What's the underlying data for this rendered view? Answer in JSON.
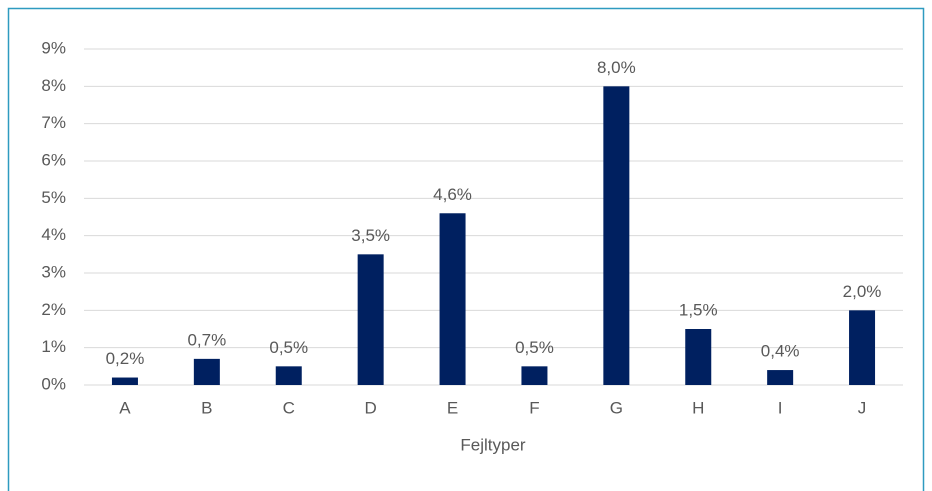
{
  "chart_data": {
    "type": "bar",
    "x_label": "Fejltyper",
    "categories": [
      "A",
      "B",
      "C",
      "D",
      "E",
      "F",
      "G",
      "H",
      "I",
      "J"
    ],
    "values": [
      0.2,
      0.7,
      0.5,
      3.5,
      4.6,
      0.5,
      8.0,
      1.5,
      0.4,
      2.0
    ],
    "value_labels": [
      "0,2%",
      "0,7%",
      "0,5%",
      "3,5%",
      "4,6%",
      "0,5%",
      "8,0%",
      "1,5%",
      "0,4%",
      "2,0%"
    ],
    "color": "#002060",
    "ylim": [
      0,
      9
    ],
    "yticks": [
      {
        "value": 0,
        "label": "0%"
      },
      {
        "value": 1,
        "label": "1%"
      },
      {
        "value": 2,
        "label": "2%"
      },
      {
        "value": 3,
        "label": "3%"
      },
      {
        "value": 4,
        "label": "4%"
      },
      {
        "value": 5,
        "label": "5%"
      },
      {
        "value": 6,
        "label": "6%"
      },
      {
        "value": 7,
        "label": "7%"
      },
      {
        "value": 8,
        "label": "8%"
      },
      {
        "value": 9,
        "label": "9%"
      }
    ],
    "grid": true
  }
}
